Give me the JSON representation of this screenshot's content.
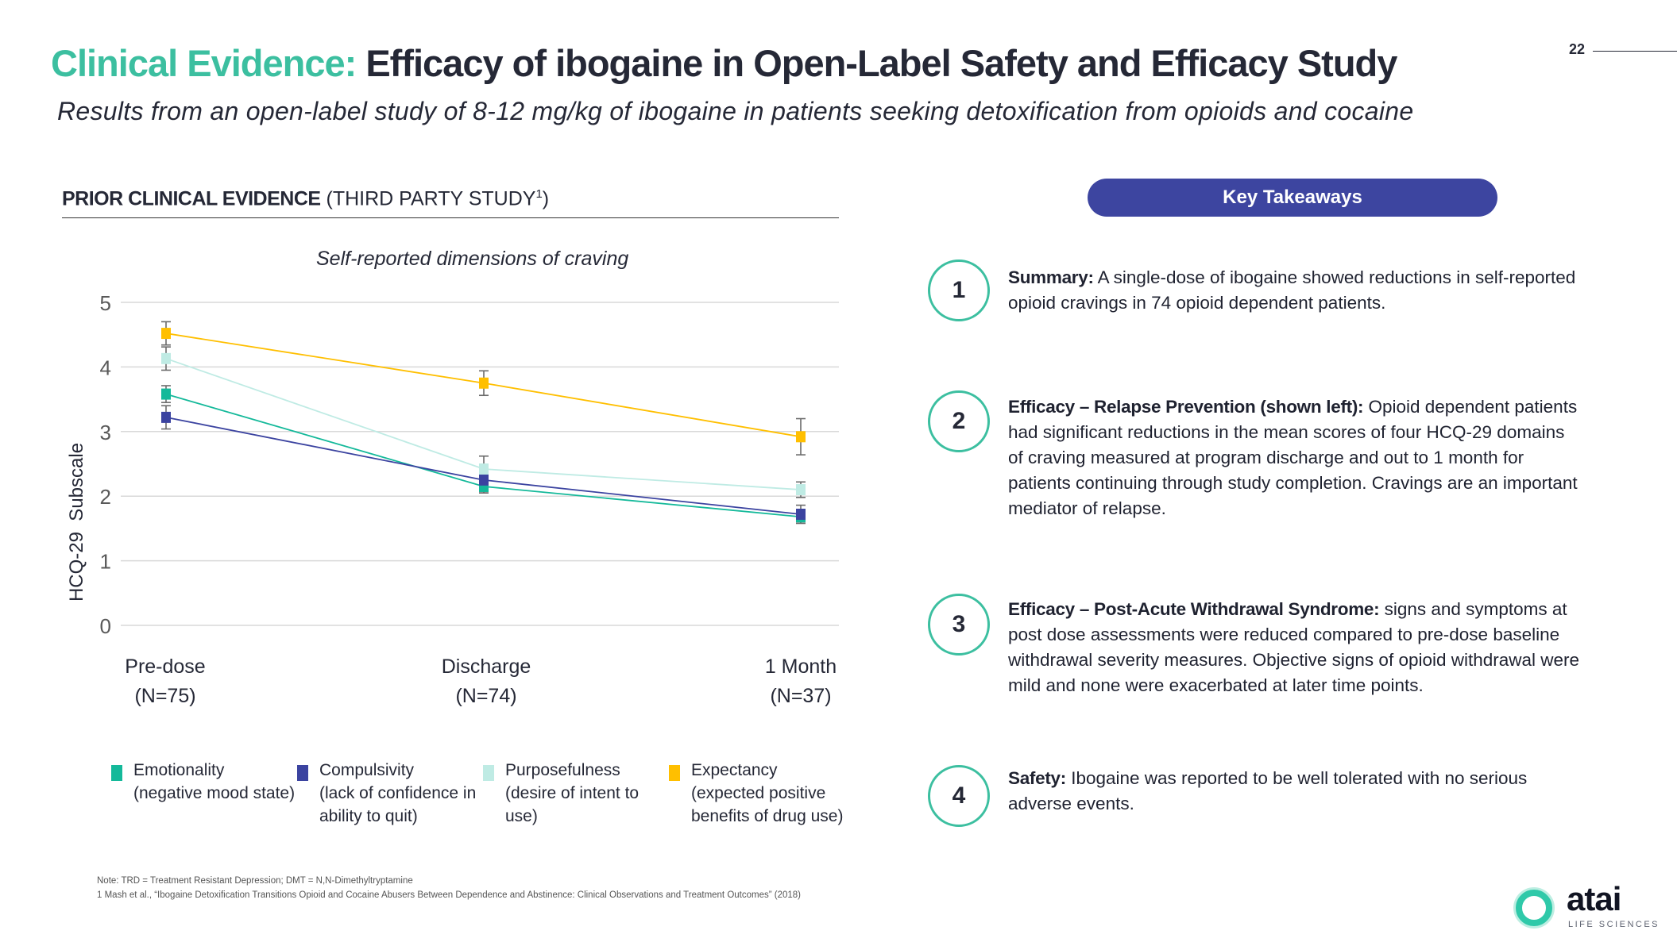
{
  "header": {
    "title_accent": "Clinical Evidence:",
    "title_main": "Efficacy of ibogaine in Open-Label Safety and Efficacy Study",
    "subtitle": "Results from an open-label study of 8-12 mg/kg of ibogaine in patients seeking detoxification from opioids and cocaine",
    "page_number": "22"
  },
  "section": {
    "heading_bold": "PRIOR CLINICAL EVIDENCE",
    "heading_rest": " (THIRD PARTY STUDY",
    "heading_sup": "1",
    "heading_close": ")"
  },
  "chart_data": {
    "type": "line",
    "title": "Self-reported dimensions of craving",
    "xlabel": "",
    "ylabel": "HCQ-29  Subscale",
    "categories": [
      "Pre-dose",
      "Discharge",
      "1 Month"
    ],
    "category_sublabels": [
      "(N=75)",
      "(N=74)",
      "(N=37)"
    ],
    "ylim": [
      0,
      5
    ],
    "yticks": [
      0,
      1,
      2,
      3,
      4,
      5
    ],
    "grid": true,
    "error_bars": true,
    "legend_position": "bottom",
    "series": [
      {
        "name": "Emotionality",
        "description": "(negative mood state)",
        "color": "#14b99a",
        "values": [
          3.58,
          2.15,
          1.68
        ],
        "errors": [
          0.13,
          0.1,
          0.1
        ]
      },
      {
        "name": "Compulsivity",
        "description": "(lack of confidence in ability to quit)",
        "color": "#3b43a0",
        "values": [
          3.22,
          2.25,
          1.72
        ],
        "errors": [
          0.18,
          0.2,
          0.14
        ]
      },
      {
        "name": "Purposefulness",
        "description": "(desire of intent to use)",
        "color": "#bfebe4",
        "values": [
          4.13,
          2.42,
          2.1
        ],
        "errors": [
          0.18,
          0.2,
          0.12
        ]
      },
      {
        "name": "Expectancy",
        "description": "(expected positive benefits of drug use)",
        "color": "#ffbf00",
        "values": [
          4.52,
          3.75,
          2.92
        ],
        "errors": [
          0.18,
          0.19,
          0.28
        ]
      }
    ]
  },
  "key_takeaways": {
    "label": "Key Takeaways",
    "items": [
      {
        "number": "1",
        "bold": "Summary:",
        "text": " A single-dose of ibogaine showed reductions in self-reported opioid cravings in 74 opioid dependent patients."
      },
      {
        "number": "2",
        "bold": "Efficacy – Relapse Prevention (shown left):",
        "text": " Opioid dependent patients had significant reductions in the mean scores of four HCQ-29 domains of craving measured at program discharge and out to 1 month for patients continuing through study completion. Cravings are an important mediator of relapse."
      },
      {
        "number": "3",
        "bold": "Efficacy – Post-Acute Withdrawal Syndrome:",
        "text": " signs and symptoms at post dose assessments were reduced compared to pre-dose baseline withdrawal severity measures. Objective signs of opioid withdrawal were mild and none were exacerbated at later time points."
      },
      {
        "number": "4",
        "bold": "Safety:",
        "text": " Ibogaine was reported to be well tolerated with no serious adverse events."
      }
    ]
  },
  "footnotes": {
    "note": "Note: TRD = Treatment Resistant Depression;  DMT = N,N-Dimethyltryptamine",
    "reference": "1 Mash et al., “Ibogaine Detoxification Transitions Opioid and Cocaine Abusers Between Dependence and Abstinence: Clinical Observations and Treatment Outcomes” (2018)"
  },
  "logo": {
    "word": "atai",
    "sub": "LIFE SCIENCES"
  }
}
